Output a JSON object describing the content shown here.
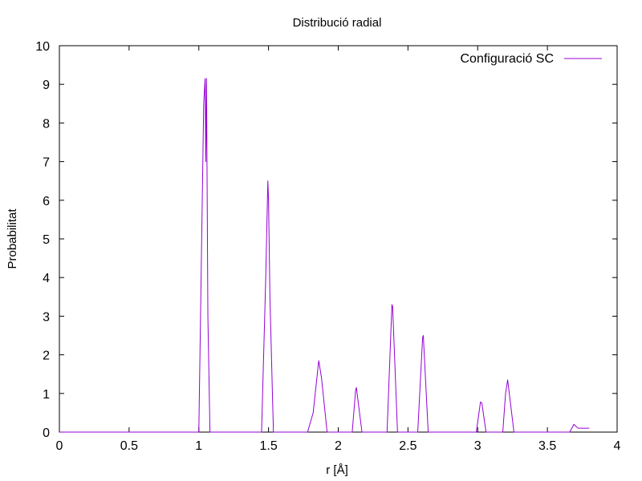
{
  "chart_data": {
    "type": "line",
    "title": "Distribució radial",
    "xlabel": "r [Å]",
    "ylabel": "Probabilitat",
    "xlim": [
      0,
      4
    ],
    "ylim": [
      0,
      10
    ],
    "x_ticks": [
      "0",
      "0.5",
      "1",
      "1.5",
      "2",
      "2.5",
      "3",
      "3.5",
      "4"
    ],
    "y_ticks": [
      "0",
      "1",
      "2",
      "3",
      "4",
      "5",
      "6",
      "7",
      "8",
      "9",
      "10"
    ],
    "grid": false,
    "legend_position": "top-right",
    "series": [
      {
        "name": "Configuració SC",
        "color": "#9400d3",
        "x": [
          0.0,
          1.0,
          1.035,
          1.045,
          1.05,
          1.055,
          1.065,
          1.08,
          1.1,
          1.45,
          1.48,
          1.495,
          1.5,
          1.51,
          1.535,
          1.55,
          1.78,
          1.82,
          1.86,
          1.88,
          1.92,
          2.1,
          2.125,
          2.13,
          2.17,
          2.35,
          2.385,
          2.39,
          2.425,
          2.57,
          2.605,
          2.61,
          2.645,
          2.99,
          3.02,
          3.03,
          3.06,
          3.18,
          3.2,
          3.215,
          3.26,
          3.66,
          3.69,
          3.72,
          3.8
        ],
        "values": [
          0,
          0,
          8.5,
          9.15,
          7.0,
          9.15,
          3.0,
          0,
          0,
          0,
          4.0,
          6.5,
          6.0,
          3.5,
          0,
          0,
          0,
          0.5,
          1.85,
          1.4,
          0,
          0,
          1.1,
          1.15,
          0,
          0,
          3.3,
          3.25,
          0,
          0,
          2.45,
          2.5,
          0,
          0,
          0.78,
          0.75,
          0,
          0,
          1.0,
          1.35,
          0,
          0,
          0.2,
          0.1,
          0.1
        ]
      }
    ]
  }
}
